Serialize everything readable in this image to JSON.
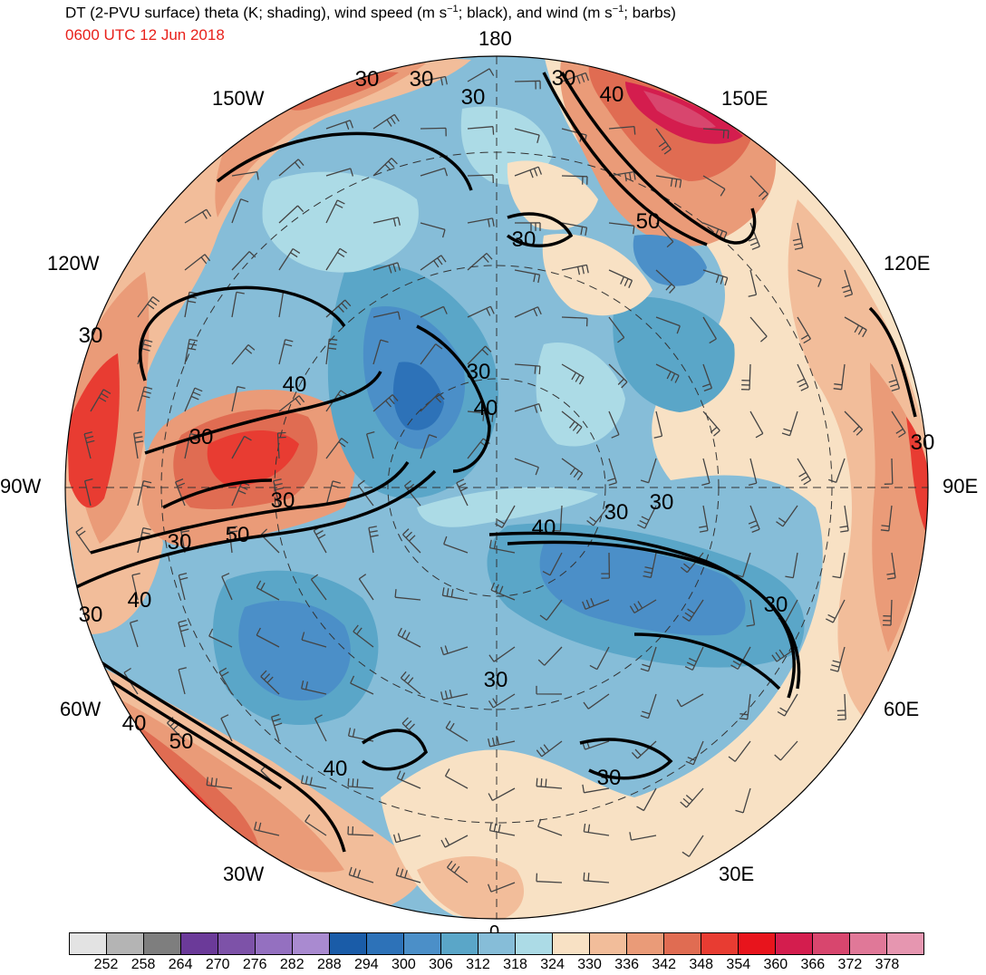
{
  "header": {
    "title_main": "DT (2-PVU surface) theta (K; shading), wind speed (m s",
    "title_sup1": "−1",
    "title_mid": "; black), and wind (m s",
    "title_sup2": "−1",
    "title_end": "; barbs)",
    "valid_time": "0600 UTC 12 Jun 2018",
    "valid_time_color": "#e8211b"
  },
  "map": {
    "projection": "polar stereographic (north pole)",
    "longitude_labels": {
      "lon_180": "180",
      "lon_150e": "150E",
      "lon_120e": "120E",
      "lon_90e": "90E",
      "lon_60e": "60E",
      "lon_30e": "30E",
      "lon_0": "0",
      "lon_30w": "30W",
      "lon_60w": "60W",
      "lon_90w": "90W",
      "lon_120w": "120W",
      "lon_150w": "150W"
    },
    "contour_labels": {
      "c1": "30",
      "c2": "30",
      "c3": "30",
      "c4": "40",
      "c5": "30",
      "c6": "30",
      "c7": "40",
      "c8": "30",
      "c9": "50",
      "c10": "30",
      "c11": "30",
      "c12": "40",
      "c13": "30",
      "c14": "40",
      "c15": "30",
      "c16": "30",
      "c17": "40",
      "c18": "30",
      "c19": "40",
      "c20": "50",
      "c21": "30",
      "c22": "30",
      "c23": "40",
      "c24": "50",
      "c25": "40",
      "c26": "30"
    }
  },
  "colorbar": {
    "units": "K",
    "colors": [
      "#e3e3e3",
      "#b4b4b4",
      "#7e7e7e",
      "#6b3a99",
      "#7d52a8",
      "#9470c0",
      "#a98ad0",
      "#1a5ca8",
      "#2d72b8",
      "#4b8fc8",
      "#5aa6c8",
      "#86bdd8",
      "#acdbe6",
      "#f8e1c4",
      "#f2bd9a",
      "#ea9b78",
      "#e06c52",
      "#e83c32",
      "#e8141c",
      "#d41d4e",
      "#d8466e",
      "#e07898",
      "#e696b0"
    ],
    "tick_labels": [
      "252",
      "258",
      "264",
      "270",
      "276",
      "282",
      "288",
      "294",
      "300",
      "306",
      "312",
      "318",
      "324",
      "330",
      "336",
      "342",
      "348",
      "354",
      "360",
      "366",
      "372",
      "378"
    ]
  }
}
